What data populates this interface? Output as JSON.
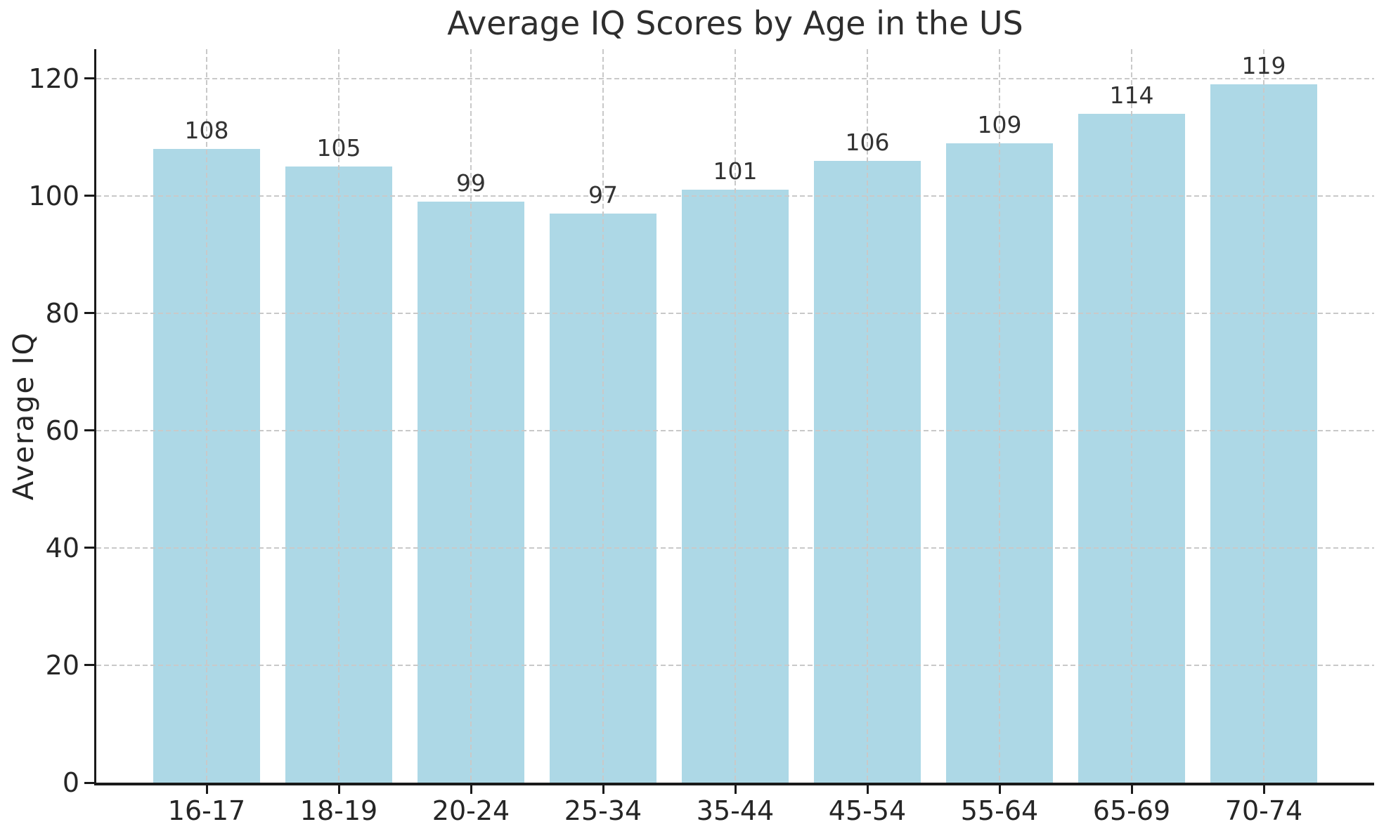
{
  "chart_data": {
    "type": "bar",
    "title": "Average IQ Scores by Age in the US",
    "xlabel": "",
    "ylabel": "Average IQ",
    "categories": [
      "16-17",
      "18-19",
      "20-24",
      "25-34",
      "35-44",
      "45-54",
      "55-64",
      "65-69",
      "70-74"
    ],
    "values": [
      108,
      105,
      99,
      97,
      101,
      106,
      109,
      114,
      119
    ],
    "value_labels_shown": true,
    "yticks": [
      0,
      20,
      40,
      60,
      80,
      100,
      120
    ],
    "ylim": [
      0,
      125
    ],
    "grid": true,
    "grid_style": "dashed",
    "legend": "none",
    "colors": {
      "bar": "#ADD8E6",
      "grid": "#c9c9c9",
      "axis": "#1a1a1a",
      "text": "#262626",
      "background": "#ffffff"
    }
  }
}
